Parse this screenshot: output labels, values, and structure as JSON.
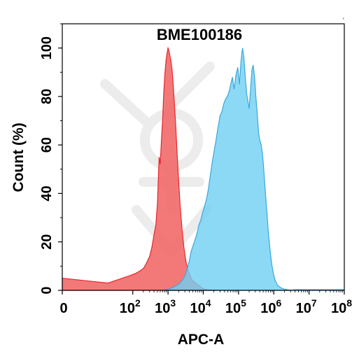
{
  "chart_data": {
    "type": "area",
    "title": "BME100186",
    "xlabel": "APC-A",
    "ylabel": "Count (%)",
    "x_scale": "log",
    "xlim": [
      0,
      100000000
    ],
    "ylim": [
      0,
      110
    ],
    "grid": false,
    "legend": "none",
    "y_ticks": [
      0,
      20,
      40,
      60,
      80,
      100
    ],
    "x_ticks": [
      {
        "value": 0,
        "base": "0",
        "exp": ""
      },
      {
        "value": 100,
        "base": "10",
        "exp": "2"
      },
      {
        "value": 1000,
        "base": "10",
        "exp": "3"
      },
      {
        "value": 10000,
        "base": "10",
        "exp": "4"
      },
      {
        "value": 100000,
        "base": "10",
        "exp": "5"
      },
      {
        "value": 1000000,
        "base": "10",
        "exp": "6"
      },
      {
        "value": 10000000,
        "base": "10",
        "exp": "7"
      },
      {
        "value": 100000000,
        "base": "10",
        "exp": "8"
      }
    ],
    "series": [
      {
        "color": "#f26a6a",
        "stroke": "#e8262b",
        "points": [
          [
            0,
            5
          ],
          [
            20,
            3
          ],
          [
            50,
            5
          ],
          [
            80,
            6
          ],
          [
            120,
            7
          ],
          [
            160,
            8
          ],
          [
            200,
            9
          ],
          [
            240,
            11
          ],
          [
            300,
            14
          ],
          [
            350,
            18
          ],
          [
            400,
            23
          ],
          [
            450,
            27
          ],
          [
            500,
            36
          ],
          [
            560,
            55
          ],
          [
            600,
            52
          ],
          [
            650,
            62
          ],
          [
            700,
            70
          ],
          [
            760,
            82
          ],
          [
            820,
            90
          ],
          [
            880,
            95
          ],
          [
            940,
            98
          ],
          [
            1000,
            100
          ],
          [
            1060,
            99
          ],
          [
            1120,
            97
          ],
          [
            1200,
            95
          ],
          [
            1300,
            91
          ],
          [
            1400,
            85
          ],
          [
            1500,
            78
          ],
          [
            1650,
            68
          ],
          [
            1800,
            57
          ],
          [
            2000,
            45
          ],
          [
            2200,
            35
          ],
          [
            2500,
            25
          ],
          [
            2800,
            18
          ],
          [
            3200,
            12
          ],
          [
            3600,
            9
          ],
          [
            4000,
            7
          ],
          [
            4500,
            5
          ],
          [
            5000,
            4
          ],
          [
            6000,
            3
          ],
          [
            7500,
            2
          ],
          [
            9000,
            1
          ],
          [
            11000,
            0.5
          ],
          [
            14000,
            0.2
          ],
          [
            18000,
            0.1
          ],
          [
            25000,
            0
          ]
        ]
      },
      {
        "color": "#6fd0f3",
        "stroke": "#3aa7dc",
        "points": [
          [
            700,
            0
          ],
          [
            900,
            0.3
          ],
          [
            1200,
            0.8
          ],
          [
            1500,
            1.5
          ],
          [
            2000,
            2.5
          ],
          [
            2500,
            4
          ],
          [
            3000,
            6
          ],
          [
            3500,
            9
          ],
          [
            4000,
            12
          ],
          [
            4500,
            16
          ],
          [
            5000,
            18
          ],
          [
            5600,
            20
          ],
          [
            6500,
            23
          ],
          [
            7500,
            27
          ],
          [
            8500,
            29
          ],
          [
            9500,
            32
          ],
          [
            11000,
            35
          ],
          [
            12500,
            38
          ],
          [
            14000,
            42
          ],
          [
            16000,
            48
          ],
          [
            18000,
            53
          ],
          [
            20000,
            57
          ],
          [
            23000,
            62
          ],
          [
            26000,
            67
          ],
          [
            30000,
            72
          ],
          [
            34000,
            74
          ],
          [
            38000,
            77
          ],
          [
            43000,
            79
          ],
          [
            48000,
            80
          ],
          [
            54000,
            82
          ],
          [
            60000,
            85
          ],
          [
            67000,
            88
          ],
          [
            75000,
            83
          ],
          [
            85000,
            89
          ],
          [
            95000,
            92
          ],
          [
            106000,
            85
          ],
          [
            118000,
            95
          ],
          [
            130000,
            100
          ],
          [
            142000,
            96
          ],
          [
            155000,
            88
          ],
          [
            170000,
            81
          ],
          [
            185000,
            78
          ],
          [
            200000,
            75
          ],
          [
            220000,
            83
          ],
          [
            240000,
            91
          ],
          [
            260000,
            93
          ],
          [
            285000,
            88
          ],
          [
            310000,
            80
          ],
          [
            340000,
            73
          ],
          [
            370000,
            65
          ],
          [
            400000,
            62
          ],
          [
            440000,
            60
          ],
          [
            480000,
            56
          ],
          [
            530000,
            48
          ],
          [
            580000,
            40
          ],
          [
            640000,
            32
          ],
          [
            700000,
            24
          ],
          [
            780000,
            17
          ],
          [
            870000,
            11
          ],
          [
            970000,
            7
          ],
          [
            1100000,
            4
          ],
          [
            1300000,
            2
          ],
          [
            1600000,
            1
          ],
          [
            2000000,
            0.5
          ],
          [
            2600000,
            0.2
          ],
          [
            3500000,
            0
          ]
        ]
      }
    ]
  }
}
